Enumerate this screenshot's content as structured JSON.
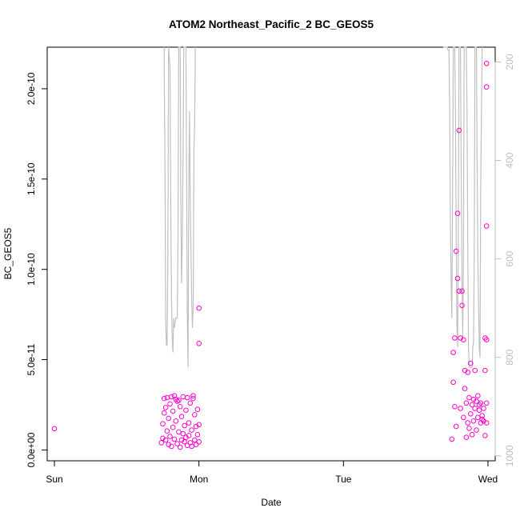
{
  "chart_data": {
    "type": "scatter",
    "title": "ATOM2 Northeast_Pacific_2 BC_GEOS5",
    "xlabel": "Date",
    "ylabel": "BC_GEOS5",
    "x_axis": {
      "unit": "days",
      "range": [
        -0.05,
        3.05
      ],
      "ticks": [
        {
          "value": 0,
          "label": "Sun"
        },
        {
          "value": 1,
          "label": "Mon"
        },
        {
          "value": 2,
          "label": "Tue"
        },
        {
          "value": 3,
          "label": "Wed"
        }
      ]
    },
    "y_axis": {
      "range": [
        -6e-12,
        2.23e-10
      ],
      "ticks": [
        {
          "value": 0,
          "label": "0.0e+00"
        },
        {
          "value": 5e-11,
          "label": "5.0e-11"
        },
        {
          "value": 1e-10,
          "label": "1.0e-10"
        },
        {
          "value": 1.5e-10,
          "label": "1.5e-10"
        },
        {
          "value": 2e-10,
          "label": "2.0e-10"
        }
      ]
    },
    "y2_axis": {
      "range": [
        1010,
        170
      ],
      "reversed": true,
      "ticks": [
        {
          "value": 200,
          "label": "200"
        },
        {
          "value": 400,
          "label": "400"
        },
        {
          "value": 600,
          "label": "600"
        },
        {
          "value": 800,
          "label": "800"
        },
        {
          "value": 1000,
          "label": "1000"
        }
      ],
      "color": "#bebebe"
    },
    "point_color": "#ff00cc",
    "line_color": "#c0c0c0",
    "series": [
      {
        "type": "points",
        "points": [
          [
            0.0,
            1.18e-11
          ],
          [
            0.74,
            4e-12
          ],
          [
            0.75,
            6.5e-12
          ],
          [
            0.75,
            1.45e-11
          ],
          [
            0.76,
            2.05e-11
          ],
          [
            0.76,
            2.85e-11
          ],
          [
            0.77,
            2.35e-11
          ],
          [
            0.77,
            5.5e-12
          ],
          [
            0.78,
            1.05e-11
          ],
          [
            0.78,
            2.9e-11
          ],
          [
            0.79,
            3e-12
          ],
          [
            0.79,
            1.75e-11
          ],
          [
            0.8,
            2.55e-11
          ],
          [
            0.8,
            7.5e-12
          ],
          [
            0.81,
            2.95e-11
          ],
          [
            0.81,
            2e-12
          ],
          [
            0.82,
            1.25e-11
          ],
          [
            0.82,
            2.15e-11
          ],
          [
            0.83,
            3e-11
          ],
          [
            0.83,
            6e-12
          ],
          [
            0.84,
            2.8e-11
          ],
          [
            0.84,
            1.6e-11
          ],
          [
            0.85,
            2.7e-11
          ],
          [
            0.85,
            3.5e-12
          ],
          [
            0.86,
            2.75e-11
          ],
          [
            0.86,
            1e-11
          ],
          [
            0.87,
            2.4e-11
          ],
          [
            0.87,
            1.5e-12
          ],
          [
            0.88,
            5.5e-12
          ],
          [
            0.88,
            1.85e-11
          ],
          [
            0.89,
            9e-12
          ],
          [
            0.89,
            2.95e-11
          ],
          [
            0.9,
            4.5e-12
          ],
          [
            0.9,
            1.35e-11
          ],
          [
            0.91,
            2.2e-11
          ],
          [
            0.91,
            7e-12
          ],
          [
            0.92,
            2.9e-11
          ],
          [
            0.92,
            2.5e-12
          ],
          [
            0.93,
            1.5e-11
          ],
          [
            0.93,
            8e-12
          ],
          [
            0.94,
            2.6e-11
          ],
          [
            0.94,
            4e-12
          ],
          [
            0.95,
            1.1e-11
          ],
          [
            0.95,
            2e-12
          ],
          [
            0.96,
            2.85e-11
          ],
          [
            0.96,
            3e-11
          ],
          [
            0.97,
            5.5e-12
          ],
          [
            0.97,
            1.95e-11
          ],
          [
            0.98,
            3e-12
          ],
          [
            0.98,
            1.3e-11
          ],
          [
            0.99,
            8.5e-12
          ],
          [
            0.99,
            2.25e-11
          ],
          [
            1.0,
            4.5e-12
          ],
          [
            1.0,
            1.4e-11
          ],
          [
            1.0,
            7.85e-11
          ],
          [
            1.0,
            5.9e-11
          ],
          [
            2.75,
            6e-12
          ],
          [
            2.76,
            3.75e-11
          ],
          [
            2.76,
            5.4e-11
          ],
          [
            2.77,
            6.2e-11
          ],
          [
            2.77,
            2.4e-11
          ],
          [
            2.78,
            1.3e-11
          ],
          [
            2.78,
            1.1e-10
          ],
          [
            2.79,
            1.31e-10
          ],
          [
            2.79,
            9.5e-11
          ],
          [
            2.8,
            1.77e-10
          ],
          [
            2.8,
            8.8e-11
          ],
          [
            2.81,
            2.3e-11
          ],
          [
            2.81,
            6.2e-11
          ],
          [
            2.82,
            8.8e-11
          ],
          [
            2.82,
            8e-11
          ],
          [
            2.83,
            1.8e-11
          ],
          [
            2.83,
            6.1e-11
          ],
          [
            2.84,
            4.4e-11
          ],
          [
            2.84,
            3.4e-11
          ],
          [
            2.85,
            2.6e-11
          ],
          [
            2.85,
            7e-12
          ],
          [
            2.86,
            1.5e-11
          ],
          [
            2.86,
            4.3e-11
          ],
          [
            2.87,
            2.9e-11
          ],
          [
            2.87,
            1.2e-11
          ],
          [
            2.88,
            2e-11
          ],
          [
            2.88,
            4.8e-11
          ],
          [
            2.89,
            2.5e-11
          ],
          [
            2.89,
            8.5e-12
          ],
          [
            2.9,
            2.8e-11
          ],
          [
            2.9,
            1.6e-11
          ],
          [
            2.91,
            4.4e-11
          ],
          [
            2.91,
            2.3e-11
          ],
          [
            2.92,
            1.1e-11
          ],
          [
            2.92,
            2.7e-11
          ],
          [
            2.93,
            3e-11
          ],
          [
            2.93,
            1.8e-11
          ],
          [
            2.94,
            2.5e-11
          ],
          [
            2.94,
            2.2e-11
          ],
          [
            2.95,
            1.5e-11
          ],
          [
            2.95,
            2.6e-11
          ],
          [
            2.96,
            1.7e-11
          ],
          [
            2.96,
            1.9e-11
          ],
          [
            2.97,
            2.3e-11
          ],
          [
            2.97,
            1.6e-11
          ],
          [
            2.98,
            6.2e-11
          ],
          [
            2.98,
            4.4e-11
          ],
          [
            2.98,
            8e-12
          ],
          [
            2.99,
            2.14e-10
          ],
          [
            2.99,
            2.01e-10
          ],
          [
            2.99,
            1.24e-10
          ],
          [
            2.99,
            6.1e-11
          ],
          [
            2.99,
            2.6e-11
          ],
          [
            2.99,
            1.5e-11
          ]
        ]
      },
      {
        "type": "line",
        "axis": "y2",
        "segments": [
          [
            [
              0.76,
              170
            ],
            [
              0.76,
              230
            ],
            [
              0.765,
              400
            ],
            [
              0.77,
              720
            ],
            [
              0.775,
              775
            ],
            [
              0.78,
              775
            ],
            [
              0.785,
              600
            ],
            [
              0.79,
              170
            ],
            [
              0.8,
              210
            ],
            [
              0.805,
              500
            ],
            [
              0.81,
              680
            ],
            [
              0.815,
              760
            ],
            [
              0.82,
              790
            ],
            [
              0.825,
              720
            ],
            [
              0.83,
              740
            ],
            [
              0.84,
              720
            ],
            [
              0.85,
              720
            ],
            [
              0.855,
              560
            ],
            [
              0.86,
              170
            ],
            [
              0.87,
              170
            ],
            [
              0.875,
              500
            ],
            [
              0.88,
              650
            ],
            [
              0.885,
              560
            ],
            [
              0.89,
              400
            ],
            [
              0.895,
              170
            ],
            [
              0.91,
              170
            ],
            [
              0.915,
              450
            ],
            [
              0.92,
              730
            ],
            [
              0.925,
              820
            ],
            [
              0.93,
              450
            ],
            [
              0.935,
              300
            ],
            [
              0.94,
              480
            ],
            [
              0.945,
              580
            ],
            [
              0.95,
              680
            ],
            [
              0.955,
              740
            ],
            [
              0.96,
              700
            ],
            [
              0.965,
              380
            ],
            [
              0.97,
              330
            ],
            [
              0.975,
              170
            ]
          ],
          [
            [
              2.69,
              170
            ],
            [
              2.72,
              170
            ],
            [
              2.72,
              175
            ],
            [
              2.73,
              175
            ],
            [
              2.735,
              300
            ],
            [
              2.74,
              520
            ],
            [
              2.745,
              650
            ],
            [
              2.75,
              720
            ],
            [
              2.755,
              500
            ],
            [
              2.76,
              170
            ],
            [
              2.77,
              170
            ],
            [
              2.775,
              300
            ],
            [
              2.78,
              550
            ],
            [
              2.785,
              730
            ],
            [
              2.79,
              780
            ],
            [
              2.795,
              560
            ],
            [
              2.8,
              170
            ],
            [
              2.81,
              170
            ],
            [
              2.815,
              420
            ],
            [
              2.82,
              640
            ],
            [
              2.825,
              760
            ],
            [
              2.83,
              600
            ],
            [
              2.835,
              170
            ],
            [
              2.84,
              170
            ],
            [
              2.85,
              170
            ],
            [
              2.855,
              300
            ],
            [
              2.86,
              570
            ],
            [
              2.865,
              780
            ],
            [
              2.87,
              820
            ],
            [
              2.88,
              820
            ],
            [
              2.89,
              820
            ],
            [
              2.895,
              780
            ],
            [
              2.9,
              770
            ],
            [
              2.905,
              600
            ],
            [
              2.91,
              170
            ],
            [
              2.92,
              170
            ],
            [
              2.925,
              400
            ],
            [
              2.93,
              600
            ],
            [
              2.94,
              780
            ],
            [
              2.945,
              800
            ],
            [
              2.95,
              450
            ],
            [
              2.955,
              300
            ],
            [
              2.96,
              170
            ]
          ]
        ]
      }
    ]
  }
}
